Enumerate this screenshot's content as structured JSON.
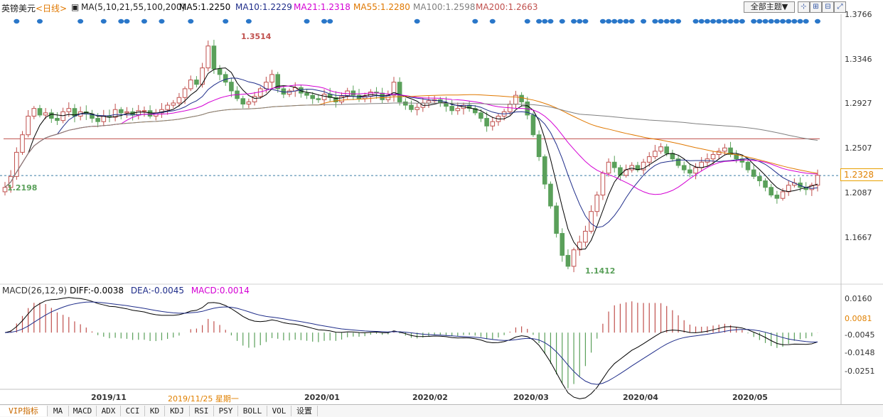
{
  "header": {
    "symbol": "英镑美元",
    "period": "<日线>",
    "ma_label": "MA(5,10,21,55,100,200)",
    "ma5": "MA5:1.2250",
    "ma10": "MA10:1.2229",
    "ma21": "MA21:1.2318",
    "ma55": "MA55:1.2280",
    "ma100": "MA100:1.2598",
    "ma200": "MA200:1.2663",
    "theme_button": "全部主题▼",
    "colors": {
      "ma5": "#000000",
      "ma10": "#1f2d8a",
      "ma21": "#d400d4",
      "ma55": "#e07800",
      "ma100": "#808080",
      "ma200": "#c0504d",
      "up": "#c0504d",
      "down": "#5aa05a"
    }
  },
  "toolbar": {
    "icons": [
      "crosshair-icon",
      "zoom-in-icon",
      "zoom-out-icon",
      "expand-icon"
    ],
    "glyphs": [
      "⊹",
      "⊞",
      "⊟",
      "⤢"
    ]
  },
  "price_axis": {
    "ticks": [
      "1.3766",
      "1.3346",
      "1.2927",
      "1.2507",
      "1.2087",
      "1.1667"
    ],
    "current": "1.2328"
  },
  "macd_axis": {
    "ticks": [
      "0.0160",
      "0.0081",
      "-0.0045",
      "-0.0148",
      "-0.0251"
    ]
  },
  "macd_header": {
    "label": "MACD(26,12,9)",
    "diff": "DIFF:-0.0038",
    "dea": "DEA:-0.0045",
    "macd": "MACD:0.0014"
  },
  "annotations": {
    "high": "1.3514",
    "low": "1.1412",
    "left_low": "1.2198"
  },
  "x_axis": {
    "labels": [
      "2019/11",
      "2019/11/25 星期一",
      "2020/01",
      "2020/02",
      "2020/03",
      "2020/04",
      "2020/05"
    ]
  },
  "tabs": [
    "VIP指标",
    "MA",
    "MACD",
    "ADX",
    "CCI",
    "KD",
    "KDJ",
    "RSI",
    "PSY",
    "BOLL",
    "VOL",
    "设置"
  ],
  "chart_data": {
    "type": "candlestick",
    "title": "英镑美元 <日线>",
    "ylim": [
      1.135,
      1.38
    ],
    "price_reference": 1.2328,
    "ma200_level": 1.2663,
    "macd_ylim": [
      -0.03,
      0.02
    ],
    "close_path": [
      1.222,
      1.232,
      1.254,
      1.27,
      1.287,
      1.294,
      1.288,
      1.29,
      1.285,
      1.283,
      1.291,
      1.294,
      1.287,
      1.291,
      1.289,
      1.285,
      1.282,
      1.287,
      1.286,
      1.293,
      1.29,
      1.291,
      1.288,
      1.292,
      1.292,
      1.287,
      1.29,
      1.293,
      1.297,
      1.299,
      1.304,
      1.312,
      1.32,
      1.316,
      1.331,
      1.351,
      1.33,
      1.325,
      1.318,
      1.31,
      1.303,
      1.298,
      1.3,
      1.305,
      1.312,
      1.318,
      1.325,
      1.312,
      1.307,
      1.31,
      1.313,
      1.308,
      1.306,
      1.303,
      1.302,
      1.307,
      1.304,
      1.3,
      1.305,
      1.31,
      1.306,
      1.303,
      1.305,
      1.309,
      1.308,
      1.302,
      1.306,
      1.318,
      1.3,
      1.297,
      1.293,
      1.295,
      1.299,
      1.301,
      1.302,
      1.299,
      1.296,
      1.292,
      1.294,
      1.297,
      1.294,
      1.29,
      1.285,
      1.278,
      1.282,
      1.287,
      1.291,
      1.298,
      1.306,
      1.3,
      1.288,
      1.27,
      1.25,
      1.225,
      1.205,
      1.18,
      1.16,
      1.15,
      1.165,
      1.172,
      1.182,
      1.2,
      1.215,
      1.235,
      1.245,
      1.24,
      1.233,
      1.238,
      1.242,
      1.238,
      1.245,
      1.25,
      1.255,
      1.259,
      1.253,
      1.248,
      1.242,
      1.238,
      1.235,
      1.24,
      1.245,
      1.248,
      1.252,
      1.255,
      1.258,
      1.252,
      1.248,
      1.245,
      1.238,
      1.232,
      1.228,
      1.222,
      1.215,
      1.212,
      1.218,
      1.224,
      1.226,
      1.222,
      1.22,
      1.224,
      1.233
    ],
    "series": [
      {
        "name": "MA5",
        "value": 1.225
      },
      {
        "name": "MA10",
        "value": 1.2229
      },
      {
        "name": "MA21",
        "value": 1.2318
      },
      {
        "name": "MA55",
        "value": 1.228
      },
      {
        "name": "MA100",
        "value": 1.2598
      },
      {
        "name": "MA200",
        "value": 1.2663
      }
    ],
    "extremes": {
      "high": 1.3514,
      "low": 1.1412,
      "left_low": 1.2198
    },
    "macd": {
      "diff": -0.0038,
      "dea": -0.0045,
      "macd": 0.0014
    }
  }
}
